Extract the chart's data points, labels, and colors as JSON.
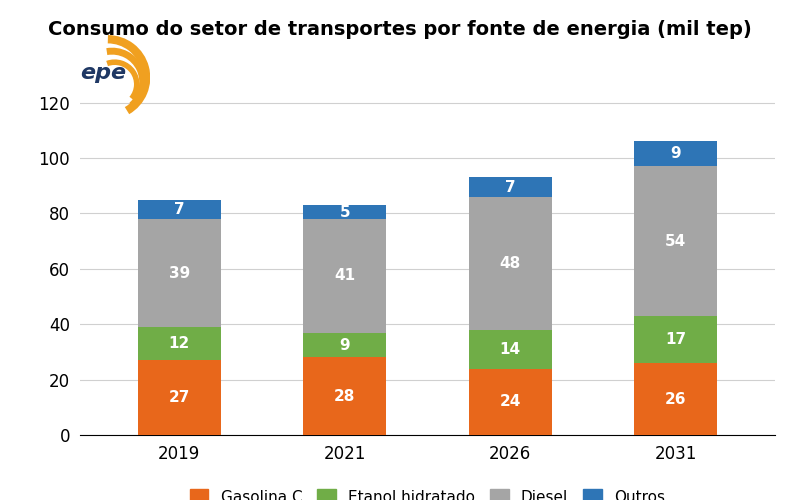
{
  "title": "Consumo do setor de transportes por fonte de energia (mil tep)",
  "years": [
    "2019",
    "2021",
    "2026",
    "2031"
  ],
  "series": {
    "Gasolina C": [
      27,
      28,
      24,
      26
    ],
    "Etanol hidratado": [
      12,
      9,
      14,
      17
    ],
    "Diesel": [
      39,
      41,
      48,
      54
    ],
    "Outros": [
      7,
      5,
      7,
      9
    ]
  },
  "colors": {
    "Gasolina C": "#E8671B",
    "Etanol hidratado": "#70AD47",
    "Diesel": "#A5A5A5",
    "Outros": "#2E75B6"
  },
  "ylim": [
    0,
    130
  ],
  "yticks": [
    0,
    20,
    40,
    60,
    80,
    100,
    120
  ],
  "bar_width": 0.5,
  "label_fontsize": 11,
  "tick_fontsize": 12,
  "title_fontsize": 14,
  "legend_fontsize": 11,
  "background_color": "#FFFFFF",
  "epe_logo_text": "epe",
  "epe_arc_color": "#F0A020",
  "epe_text_color": "#1F3864"
}
